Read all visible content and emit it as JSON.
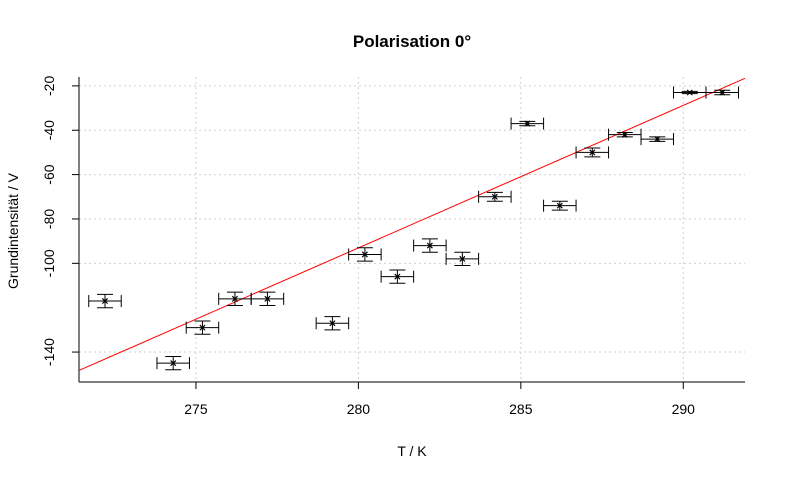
{
  "chart_data": {
    "type": "scatter",
    "title": "Polarisation 0°",
    "xlabel": "T / K",
    "ylabel": "Grundintensität / V",
    "xlim": [
      271.4,
      291.9
    ],
    "ylim": [
      -153.5,
      -16
    ],
    "x_ticks": [
      275,
      280,
      285,
      290
    ],
    "y_ticks": [
      -20,
      -40,
      -60,
      -80,
      -100,
      -140
    ],
    "grid": true,
    "points": [
      {
        "x": 272.2,
        "y": -117,
        "xerr": 0.5,
        "yerr": 3
      },
      {
        "x": 274.3,
        "y": -145,
        "xerr": 0.5,
        "yerr": 3
      },
      {
        "x": 275.2,
        "y": -129,
        "xerr": 0.5,
        "yerr": 3
      },
      {
        "x": 276.2,
        "y": -116,
        "xerr": 0.5,
        "yerr": 3
      },
      {
        "x": 277.2,
        "y": -116,
        "xerr": 0.5,
        "yerr": 3
      },
      {
        "x": 279.2,
        "y": -127,
        "xerr": 0.5,
        "yerr": 3
      },
      {
        "x": 280.2,
        "y": -96,
        "xerr": 0.5,
        "yerr": 3
      },
      {
        "x": 281.2,
        "y": -106,
        "xerr": 0.5,
        "yerr": 3
      },
      {
        "x": 282.2,
        "y": -92,
        "xerr": 0.5,
        "yerr": 3
      },
      {
        "x": 283.2,
        "y": -98,
        "xerr": 0.5,
        "yerr": 3
      },
      {
        "x": 284.2,
        "y": -70,
        "xerr": 0.5,
        "yerr": 2
      },
      {
        "x": 285.2,
        "y": -37,
        "xerr": 0.5,
        "yerr": 1
      },
      {
        "x": 286.2,
        "y": -74,
        "xerr": 0.5,
        "yerr": 2
      },
      {
        "x": 287.2,
        "y": -50,
        "xerr": 0.5,
        "yerr": 2
      },
      {
        "x": 288.2,
        "y": -42,
        "xerr": 0.5,
        "yerr": 1
      },
      {
        "x": 289.2,
        "y": -44,
        "xerr": 0.5,
        "yerr": 1
      },
      {
        "x": 290.2,
        "y": -23,
        "xerr": 0.5,
        "yerr": 0.5
      },
      {
        "x": 291.2,
        "y": -23,
        "xerr": 0.5,
        "yerr": 1
      }
    ],
    "fit_line": {
      "x": [
        271.4,
        291.9
      ],
      "y": [
        -148.3,
        -16.6
      ],
      "color": "#ff0000"
    }
  }
}
